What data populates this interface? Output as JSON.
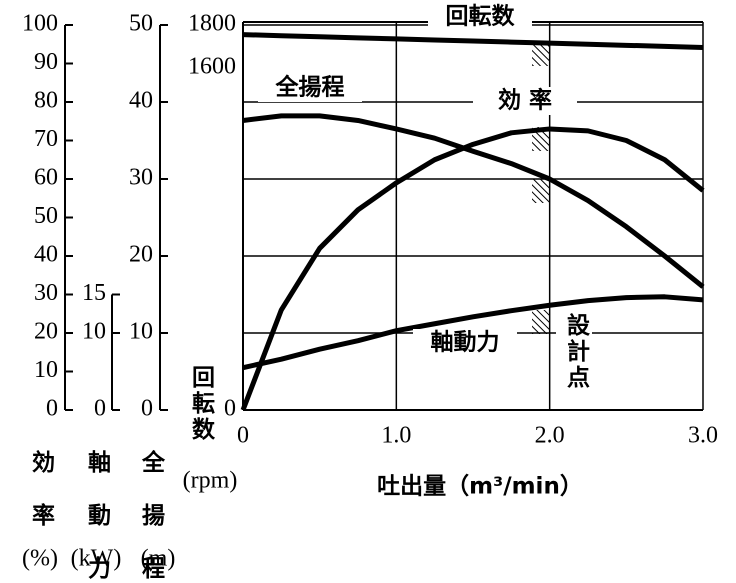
{
  "chart_data": {
    "type": "line",
    "x": [
      0,
      0.25,
      0.5,
      0.75,
      1,
      1.25,
      1.5,
      1.75,
      2,
      2.25,
      2.5,
      2.75,
      3
    ],
    "xlim": [
      0,
      3
    ],
    "xticks": [
      0,
      {
        "value": 1,
        "label": "1.0"
      },
      {
        "value": 2,
        "label": "2.0"
      },
      {
        "value": 3,
        "label": "3.0"
      }
    ],
    "xlabel": "吐出量（m³/min）",
    "grid": true,
    "color": "#000000",
    "axes": [
      {
        "title": "効率",
        "unit": "(%)",
        "ylim": [
          0,
          100
        ],
        "yticks": [
          0,
          10,
          20,
          30,
          40,
          50,
          60,
          70,
          80,
          90,
          100
        ]
      },
      {
        "title": "軸動力",
        "unit": "(kW)",
        "ylim": [
          0,
          50
        ],
        "yticks": [
          0,
          10,
          15
        ]
      },
      {
        "title": "全揚程",
        "unit": "(m)",
        "ylim": [
          0,
          50
        ],
        "yticks": [
          0,
          10,
          20,
          30,
          40,
          50
        ]
      },
      {
        "title": "回転数",
        "unit": "(rpm)",
        "ylim": [
          0,
          1800
        ],
        "yticks": [
          0,
          1600,
          1800
        ]
      }
    ],
    "series": [
      {
        "name": "回転数",
        "axis": 3,
        "values": [
          1755,
          1750,
          1745,
          1740,
          1735,
          1730,
          1725,
          1720,
          1715,
          1710,
          1705,
          1700,
          1695
        ]
      },
      {
        "name": "全揚程",
        "axis": 2,
        "values": [
          37.6,
          38.2,
          38.2,
          37.6,
          36.5,
          35.3,
          33.6,
          32,
          30,
          27.2,
          23.8,
          20,
          16
        ]
      },
      {
        "name": "効 率",
        "axis": 0,
        "values": [
          0,
          26,
          42,
          52,
          59,
          65,
          69,
          72,
          73,
          72.5,
          70,
          65,
          57
        ]
      },
      {
        "name": "軸動力",
        "axis": 1,
        "values": [
          5.5,
          6.6,
          7.9,
          9,
          10.3,
          11.2,
          12.1,
          12.9,
          13.6,
          14.2,
          14.6,
          14.7,
          14.3
        ]
      }
    ],
    "annotation": "設計点"
  }
}
